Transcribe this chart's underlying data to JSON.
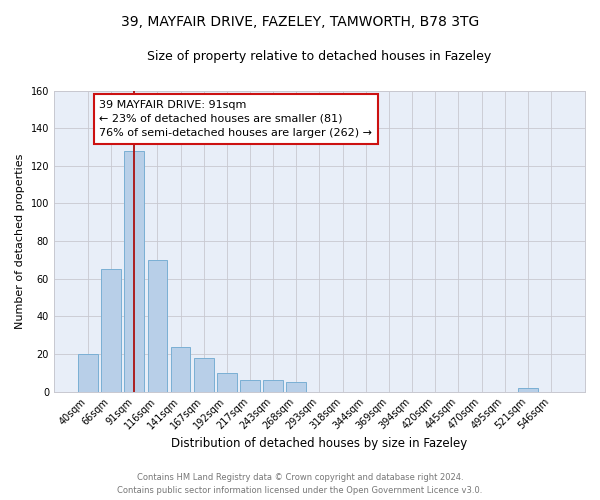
{
  "title": "39, MAYFAIR DRIVE, FAZELEY, TAMWORTH, B78 3TG",
  "subtitle": "Size of property relative to detached houses in Fazeley",
  "xlabel": "Distribution of detached houses by size in Fazeley",
  "ylabel": "Number of detached properties",
  "categories": [
    "40sqm",
    "66sqm",
    "91sqm",
    "116sqm",
    "141sqm",
    "167sqm",
    "192sqm",
    "217sqm",
    "243sqm",
    "268sqm",
    "293sqm",
    "318sqm",
    "344sqm",
    "369sqm",
    "394sqm",
    "420sqm",
    "445sqm",
    "470sqm",
    "495sqm",
    "521sqm",
    "546sqm"
  ],
  "bar_heights": [
    20,
    65,
    128,
    70,
    24,
    18,
    10,
    6,
    6,
    5,
    0,
    0,
    0,
    0,
    0,
    0,
    0,
    0,
    0,
    2,
    0
  ],
  "bar_color": "#b8cfe8",
  "bar_edge_color": "#7aafd4",
  "vline_x_index": 2,
  "vline_color": "#aa1111",
  "ylim": [
    0,
    160
  ],
  "yticks": [
    0,
    20,
    40,
    60,
    80,
    100,
    120,
    140,
    160
  ],
  "annotation_line1": "39 MAYFAIR DRIVE: 91sqm",
  "annotation_line2": "← 23% of detached houses are smaller (81)",
  "annotation_line3": "76% of semi-detached houses are larger (262) →",
  "footer_line1": "Contains HM Land Registry data © Crown copyright and database right 2024.",
  "footer_line2": "Contains public sector information licensed under the Open Government Licence v3.0.",
  "plot_bg_color": "#e8eef8",
  "grid_color": "#c8c8d0",
  "title_fontsize": 10,
  "subtitle_fontsize": 9,
  "ylabel_fontsize": 8,
  "xlabel_fontsize": 8.5,
  "tick_fontsize": 7,
  "ann_fontsize": 8,
  "footer_fontsize": 6
}
